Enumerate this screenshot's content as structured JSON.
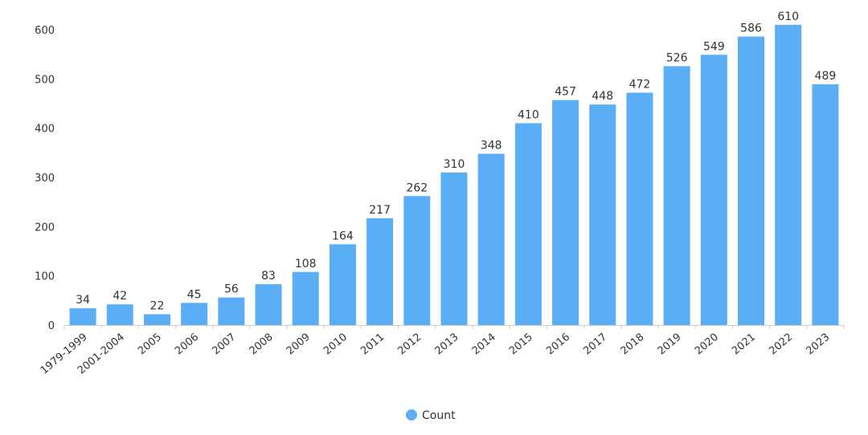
{
  "chart_data": {
    "type": "bar",
    "title": "",
    "xlabel": "",
    "ylabel": "",
    "categories": [
      "1979-1999",
      "2001-2004",
      "2005",
      "2006",
      "2007",
      "2008",
      "2009",
      "2010",
      "2011",
      "2012",
      "2013",
      "2014",
      "2015",
      "2016",
      "2017",
      "2018",
      "2019",
      "2020",
      "2021",
      "2022",
      "2023"
    ],
    "series": [
      {
        "name": "Count",
        "values": [
          34,
          42,
          22,
          45,
          56,
          83,
          108,
          164,
          217,
          262,
          310,
          348,
          410,
          457,
          448,
          472,
          526,
          549,
          586,
          610,
          489
        ],
        "color": "#5aaef5"
      }
    ],
    "ylim": [
      0,
      600
    ],
    "yticks": [
      "0",
      "100",
      "200",
      "300",
      "400",
      "500",
      "600"
    ],
    "grid": false,
    "legend": {
      "position": "bottom-center"
    },
    "colors": {
      "axis": "#cccccc",
      "text": "#333333"
    }
  }
}
